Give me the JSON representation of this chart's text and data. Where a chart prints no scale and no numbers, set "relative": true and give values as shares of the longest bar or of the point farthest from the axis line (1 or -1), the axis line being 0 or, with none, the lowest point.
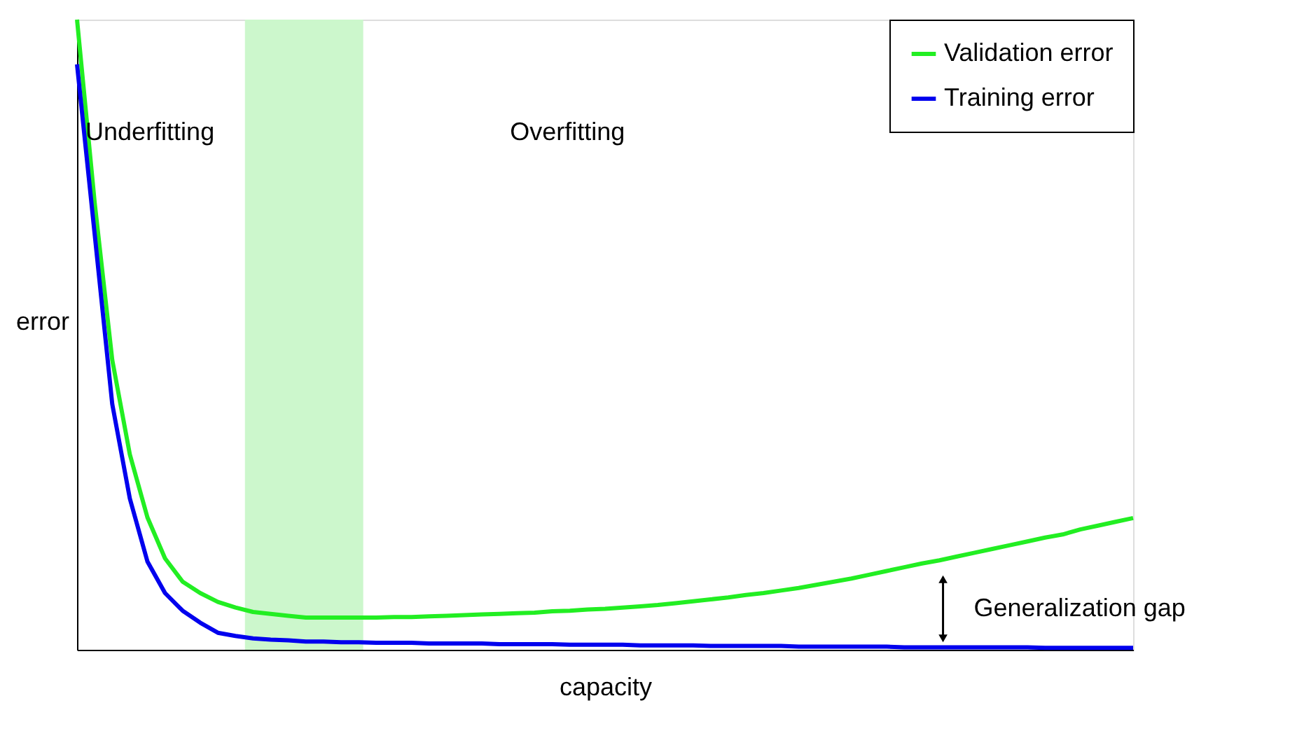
{
  "chart_data": {
    "type": "line",
    "relative": true,
    "xlabel": "capacity",
    "ylabel": "error",
    "categories": [
      null,
      null,
      null,
      null,
      null,
      null,
      null,
      null,
      null,
      null,
      null,
      null,
      null,
      null,
      null,
      null,
      null,
      null,
      null,
      null,
      null,
      null,
      null,
      null,
      null,
      null,
      null,
      null,
      null,
      null,
      null,
      null,
      null,
      null,
      null,
      null,
      null,
      null,
      null,
      null,
      null,
      null,
      null,
      null,
      null,
      null,
      null,
      null,
      null,
      null,
      null,
      null,
      null,
      null,
      null,
      null,
      null,
      null,
      null,
      null,
      null
    ],
    "grid": false,
    "legend": "top right",
    "marker": "none",
    "line_style": "solid",
    "series": [
      {
        "name": "Validation error",
        "color": "#22ee22",
        "values": [
          1,
          0.71,
          0.46,
          0.31,
          0.21,
          0.145,
          0.108,
          0.09,
          0.076,
          0.067,
          0.06,
          0.057,
          0.054,
          0.051,
          0.051,
          0.051,
          0.051,
          0.051,
          0.052,
          0.052,
          0.053,
          0.054,
          0.055,
          0.056,
          0.057,
          0.058,
          0.059,
          0.061,
          0.062,
          0.064,
          0.065,
          0.067,
          0.069,
          0.071,
          0.074,
          0.077,
          0.08,
          0.083,
          0.087,
          0.09,
          0.094,
          0.098,
          0.103,
          0.108,
          0.113,
          0.119,
          0.125,
          0.131,
          0.137,
          0.142,
          0.148,
          0.154,
          0.16,
          0.166,
          0.172,
          0.178,
          0.183,
          0.191,
          0.197,
          0.203,
          0.209
        ]
      },
      {
        "name": "Training error",
        "color": "#0000ee",
        "values": [
          0.929,
          0.66,
          0.39,
          0.24,
          0.14,
          0.09,
          0.062,
          0.043,
          0.027,
          0.022,
          0.018,
          0.016,
          0.015,
          0.013,
          0.013,
          0.012,
          0.012,
          0.011,
          0.011,
          0.011,
          0.01,
          0.01,
          0.01,
          0.01,
          0.009,
          0.009,
          0.009,
          0.009,
          0.008,
          0.008,
          0.008,
          0.008,
          0.007,
          0.007,
          0.007,
          0.007,
          0.006,
          0.006,
          0.006,
          0.006,
          0.006,
          0.005,
          0.005,
          0.005,
          0.005,
          0.005,
          0.005,
          0.004,
          0.004,
          0.004,
          0.004,
          0.004,
          0.004,
          0.004,
          0.004,
          0.003,
          0.003,
          0.003,
          0.003,
          0.003,
          0.003
        ]
      }
    ],
    "annotations": [
      "Underfitting",
      "Overfitting",
      "Generalization gap"
    ]
  }
}
